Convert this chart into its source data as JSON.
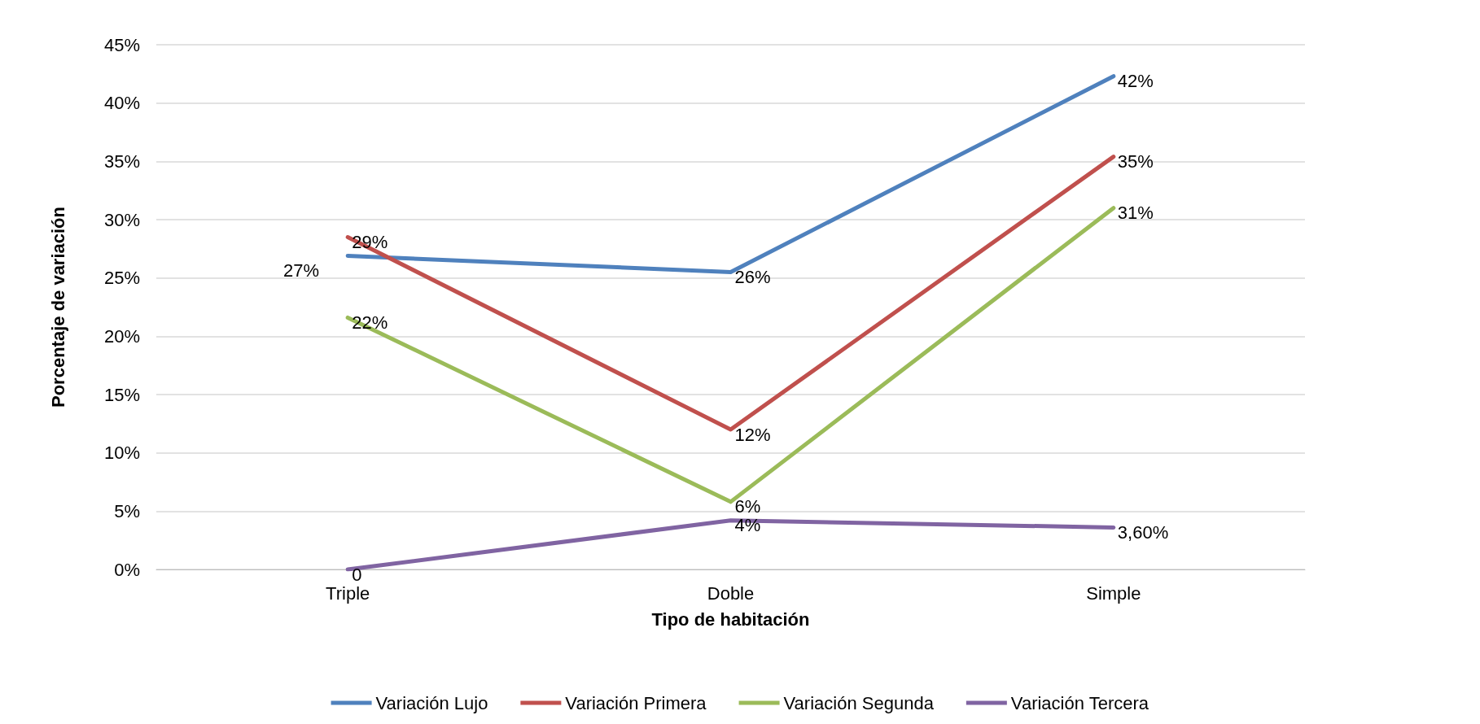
{
  "chart_data": {
    "type": "line",
    "xlabel": "Tipo de habitación",
    "ylabel": "Porcentaje de variación",
    "categories": [
      "Triple",
      "Doble",
      "Simple"
    ],
    "series": [
      {
        "name": "Variación Lujo",
        "color": "#4f81bd",
        "values": [
          26.9,
          25.5,
          42.3
        ],
        "value_labels": [
          "27%",
          "26%",
          "42%"
        ]
      },
      {
        "name": "Variación Primera",
        "color": "#c0504d",
        "values": [
          28.5,
          12.0,
          35.4
        ],
        "value_labels": [
          "29%",
          "12%",
          "35%"
        ]
      },
      {
        "name": "Variación Segunda",
        "color": "#9bbb59",
        "values": [
          21.6,
          5.8,
          31.0
        ],
        "value_labels": [
          "22%",
          "6%",
          "31%"
        ]
      },
      {
        "name": "Variación Tercera",
        "color": "#8064a2",
        "values": [
          0,
          4.2,
          3.6
        ],
        "value_labels": [
          "0",
          "4%",
          "3,60%"
        ]
      }
    ],
    "ylim": [
      0,
      45
    ],
    "yticks": [
      {
        "value": 0,
        "label": "0%"
      },
      {
        "value": 5,
        "label": "5%"
      },
      {
        "value": 10,
        "label": "10%"
      },
      {
        "value": 15,
        "label": "15%"
      },
      {
        "value": 20,
        "label": "20%"
      },
      {
        "value": 25,
        "label": "25%"
      },
      {
        "value": 30,
        "label": "30%"
      },
      {
        "value": 35,
        "label": "35%"
      },
      {
        "value": 40,
        "label": "40%"
      },
      {
        "value": 45,
        "label": "45%"
      }
    ],
    "grid": "y",
    "legend": "bottom",
    "marker": "none",
    "line_style": "solid"
  }
}
